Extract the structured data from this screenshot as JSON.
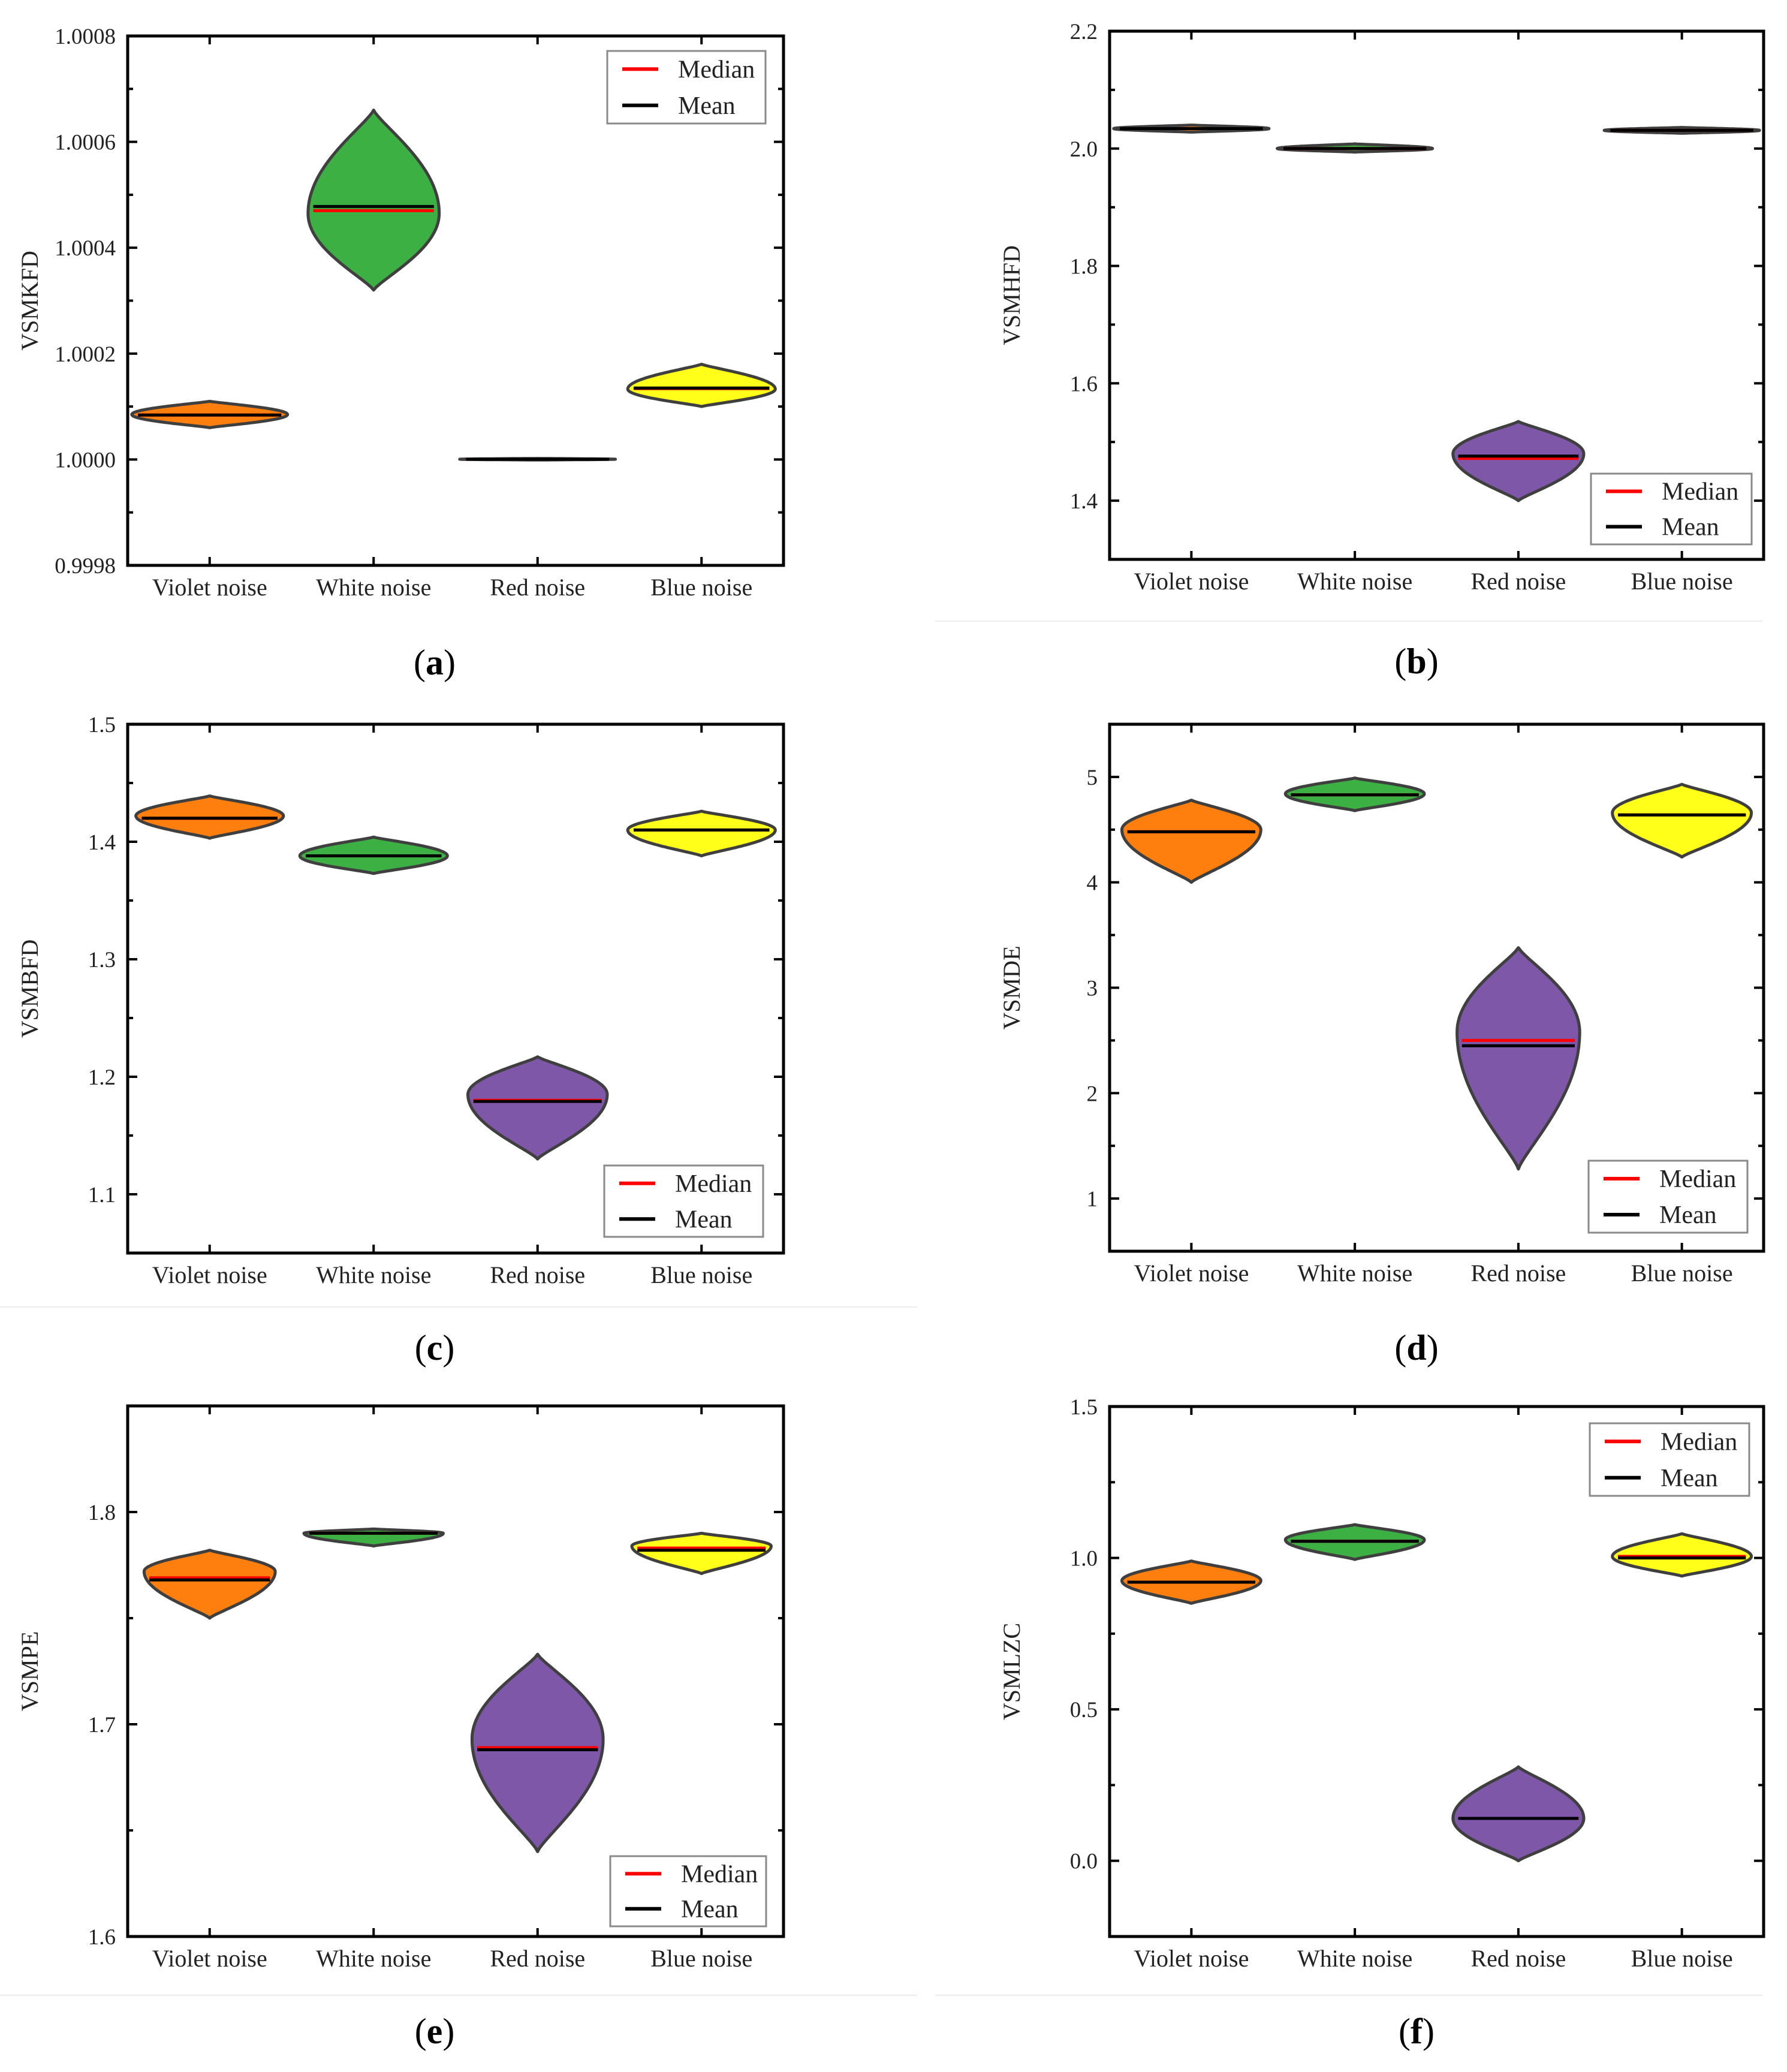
{
  "colors": {
    "median": "#ff0000",
    "mean": "#000000",
    "violet_noise": "#ff7f0e",
    "white_noise": "#3cb043",
    "red_noise": "#7e57a8",
    "blue_noise": "#ffff1a",
    "outline": "#3f3f3f"
  },
  "chart_data": [
    {
      "type": "violin",
      "panel": "(a)",
      "panel_letter": "a",
      "ylabel": "VSMKFD",
      "xlabel": "",
      "categories": [
        "Violet noise",
        "White noise",
        "Red noise",
        "Blue noise"
      ],
      "ylim": [
        0.9998,
        1.0008
      ],
      "yticks": [
        0.9998,
        1.0,
        1.0002,
        1.0004,
        1.0006,
        1.0008
      ],
      "ytick_labels": [
        "0.9998",
        "1.0000",
        "1.0002",
        "1.0004",
        "1.0006",
        "1.0008"
      ],
      "legend": {
        "position": "top-right",
        "entries": [
          "Median",
          "Mean"
        ]
      },
      "series": [
        {
          "name": "Violet noise",
          "min": 1.00006,
          "max": 1.00011,
          "mode": 1.000085,
          "median": 1.000084,
          "mean": 1.000084,
          "width": 0.95
        },
        {
          "name": "White noise",
          "min": 1.00032,
          "max": 1.00066,
          "mode": 1.000465,
          "median": 1.00047,
          "mean": 1.000478,
          "width": 0.8
        },
        {
          "name": "Red noise",
          "min": 0.999999,
          "max": 1.000002,
          "mode": 1.0000005,
          "median": 1.0000005,
          "mean": 1.0000005,
          "width": 0.95
        },
        {
          "name": "Blue noise",
          "min": 1.0001,
          "max": 1.00018,
          "mode": 1.000133,
          "median": 1.000134,
          "mean": 1.000135,
          "width": 0.9
        }
      ]
    },
    {
      "type": "violin",
      "panel": "(b)",
      "panel_letter": "b",
      "ylabel": "VSMHFD",
      "xlabel": "",
      "categories": [
        "Violet noise",
        "White noise",
        "Red noise",
        "Blue noise"
      ],
      "ylim": [
        1.3,
        2.2
      ],
      "yticks": [
        1.4,
        1.6,
        1.8,
        2.0,
        2.2
      ],
      "ytick_labels": [
        "1.4",
        "1.6",
        "1.8",
        "2.0",
        "2.2"
      ],
      "legend": {
        "position": "bottom-right",
        "entries": [
          "Median",
          "Mean"
        ]
      },
      "series": [
        {
          "name": "Violet noise",
          "min": 2.028,
          "max": 2.04,
          "mode": 2.034,
          "median": 2.034,
          "mean": 2.034,
          "width": 0.95
        },
        {
          "name": "White noise",
          "min": 1.994,
          "max": 2.008,
          "mode": 2.0,
          "median": 2.0,
          "mean": 2.0,
          "width": 0.95
        },
        {
          "name": "Red noise",
          "min": 1.4,
          "max": 1.535,
          "mode": 1.48,
          "median": 1.472,
          "mean": 1.476,
          "width": 0.8
        },
        {
          "name": "Blue noise",
          "min": 2.026,
          "max": 2.036,
          "mode": 2.031,
          "median": 2.031,
          "mean": 2.031,
          "width": 0.95
        }
      ]
    },
    {
      "type": "violin",
      "panel": "(c)",
      "panel_letter": "c",
      "ylabel": "VSMBFD",
      "xlabel": "",
      "categories": [
        "Violet noise",
        "White noise",
        "Red noise",
        "Blue noise"
      ],
      "ylim": [
        1.05,
        1.5
      ],
      "yticks": [
        1.1,
        1.2,
        1.3,
        1.4,
        1.5
      ],
      "ytick_labels": [
        "1.1",
        "1.2",
        "1.3",
        "1.4",
        "1.5"
      ],
      "legend": {
        "position": "bottom-right",
        "entries": [
          "Median",
          "Mean"
        ]
      },
      "series": [
        {
          "name": "Violet noise",
          "min": 1.403,
          "max": 1.439,
          "mode": 1.422,
          "median": 1.42,
          "mean": 1.42,
          "width": 0.9
        },
        {
          "name": "White noise",
          "min": 1.373,
          "max": 1.404,
          "mode": 1.388,
          "median": 1.388,
          "mean": 1.388,
          "width": 0.9
        },
        {
          "name": "Red noise",
          "min": 1.13,
          "max": 1.217,
          "mode": 1.185,
          "median": 1.18,
          "mean": 1.179,
          "width": 0.85
        },
        {
          "name": "Blue noise",
          "min": 1.388,
          "max": 1.426,
          "mode": 1.41,
          "median": 1.41,
          "mean": 1.41,
          "width": 0.9
        }
      ]
    },
    {
      "type": "violin",
      "panel": "(d)",
      "panel_letter": "d",
      "ylabel": "VSMDE",
      "xlabel": "",
      "categories": [
        "Violet noise",
        "White noise",
        "Red noise",
        "Blue noise"
      ],
      "ylim": [
        0.5,
        5.5
      ],
      "yticks": [
        1,
        2,
        3,
        4,
        5
      ],
      "ytick_labels": [
        "1",
        "2",
        "3",
        "4",
        "5"
      ],
      "legend": {
        "position": "bottom-right",
        "entries": [
          "Median",
          "Mean"
        ]
      },
      "series": [
        {
          "name": "Violet noise",
          "min": 4.0,
          "max": 4.78,
          "mode": 4.5,
          "median": 4.48,
          "mean": 4.48,
          "width": 0.85
        },
        {
          "name": "White noise",
          "min": 4.68,
          "max": 4.99,
          "mode": 4.84,
          "median": 4.83,
          "mean": 4.83,
          "width": 0.85
        },
        {
          "name": "Red noise",
          "min": 1.28,
          "max": 3.38,
          "mode": 2.58,
          "median": 2.5,
          "mean": 2.45,
          "width": 0.75
        },
        {
          "name": "Blue noise",
          "min": 4.24,
          "max": 4.93,
          "mode": 4.66,
          "median": 4.64,
          "mean": 4.64,
          "width": 0.85
        }
      ]
    },
    {
      "type": "violin",
      "panel": "(e)",
      "panel_letter": "e",
      "ylabel": "VSMPE",
      "xlabel": "",
      "categories": [
        "Violet noise",
        "White noise",
        "Red noise",
        "Blue noise"
      ],
      "ylim": [
        1.6,
        1.85
      ],
      "yticks": [
        1.6,
        1.7,
        1.8
      ],
      "ytick_labels": [
        "1.6",
        "1.7",
        "1.8"
      ],
      "legend": {
        "position": "bottom-right",
        "entries": [
          "Median",
          "Mean"
        ]
      },
      "series": [
        {
          "name": "Violet noise",
          "min": 1.75,
          "max": 1.782,
          "mode": 1.772,
          "median": 1.769,
          "mean": 1.768,
          "width": 0.8
        },
        {
          "name": "White noise",
          "min": 1.784,
          "max": 1.792,
          "mode": 1.79,
          "median": 1.79,
          "mean": 1.79,
          "width": 0.85
        },
        {
          "name": "Red noise",
          "min": 1.64,
          "max": 1.733,
          "mode": 1.693,
          "median": 1.689,
          "mean": 1.688,
          "width": 0.8
        },
        {
          "name": "Blue noise",
          "min": 1.771,
          "max": 1.79,
          "mode": 1.784,
          "median": 1.783,
          "mean": 1.782,
          "width": 0.85
        }
      ]
    },
    {
      "type": "violin",
      "panel": "(f)",
      "panel_letter": "f",
      "ylabel": "VSMLZC",
      "xlabel": "",
      "categories": [
        "Violet noise",
        "White noise",
        "Red noise",
        "Blue noise"
      ],
      "ylim": [
        -0.25,
        1.5
      ],
      "yticks": [
        0.0,
        0.5,
        1.0,
        1.5
      ],
      "ytick_labels": [
        "0.0",
        "0.5",
        "1.0",
        "1.5"
      ],
      "legend": {
        "position": "top-right",
        "entries": [
          "Median",
          "Mean"
        ]
      },
      "series": [
        {
          "name": "Violet noise",
          "min": 0.85,
          "max": 0.99,
          "mode": 0.925,
          "median": 0.92,
          "mean": 0.92,
          "width": 0.85
        },
        {
          "name": "White noise",
          "min": 0.995,
          "max": 1.11,
          "mode": 1.06,
          "median": 1.055,
          "mean": 1.055,
          "width": 0.85
        },
        {
          "name": "Red noise",
          "min": 0.0,
          "max": 0.31,
          "mode": 0.14,
          "median": 0.14,
          "mean": 0.14,
          "width": 0.8
        },
        {
          "name": "Blue noise",
          "min": 0.94,
          "max": 1.08,
          "mode": 1.005,
          "median": 1.005,
          "mean": 1.0,
          "width": 0.85
        }
      ]
    }
  ]
}
